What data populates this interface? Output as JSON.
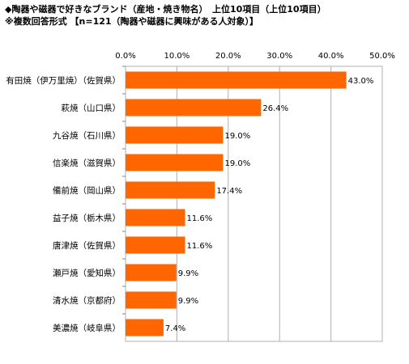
{
  "title_line1": "◆陶器や磁器で好きなブランド（産地・焼き物名）　上位10項目（上位10項目）",
  "title_line2": "※複数回答形式 【n=121（陶器や磁器に興味がある人対象）】",
  "chart_data": {
    "type": "bar",
    "orientation": "horizontal",
    "categories": [
      "有田焼（伊万里焼）（佐賀県）",
      "萩焼（山口県）",
      "九谷焼（石川県）",
      "信楽焼（滋賀県）",
      "備前焼（岡山県）",
      "益子焼（栃木県）",
      "唐津焼（佐賀県）",
      "瀬戸焼（愛知県）",
      "清水焼（京都府）",
      "美濃焼（岐阜県）"
    ],
    "values": [
      43.0,
      26.4,
      19.0,
      19.0,
      17.4,
      11.6,
      11.6,
      9.9,
      9.9,
      7.4
    ],
    "value_labels": [
      "43.0%",
      "26.4%",
      "19.0%",
      "19.0%",
      "17.4%",
      "11.6%",
      "11.6%",
      "9.9%",
      "9.9%",
      "7.4%"
    ],
    "x_ticks": [
      0,
      10,
      20,
      30,
      40,
      50
    ],
    "x_tick_labels": [
      "0.0%",
      "10.0%",
      "20.0%",
      "30.0%",
      "40.0%",
      "50.0%"
    ],
    "xlim": [
      0,
      50
    ],
    "bar_color": "#ff6600",
    "grid": true,
    "title": "",
    "xlabel": "",
    "ylabel": ""
  }
}
